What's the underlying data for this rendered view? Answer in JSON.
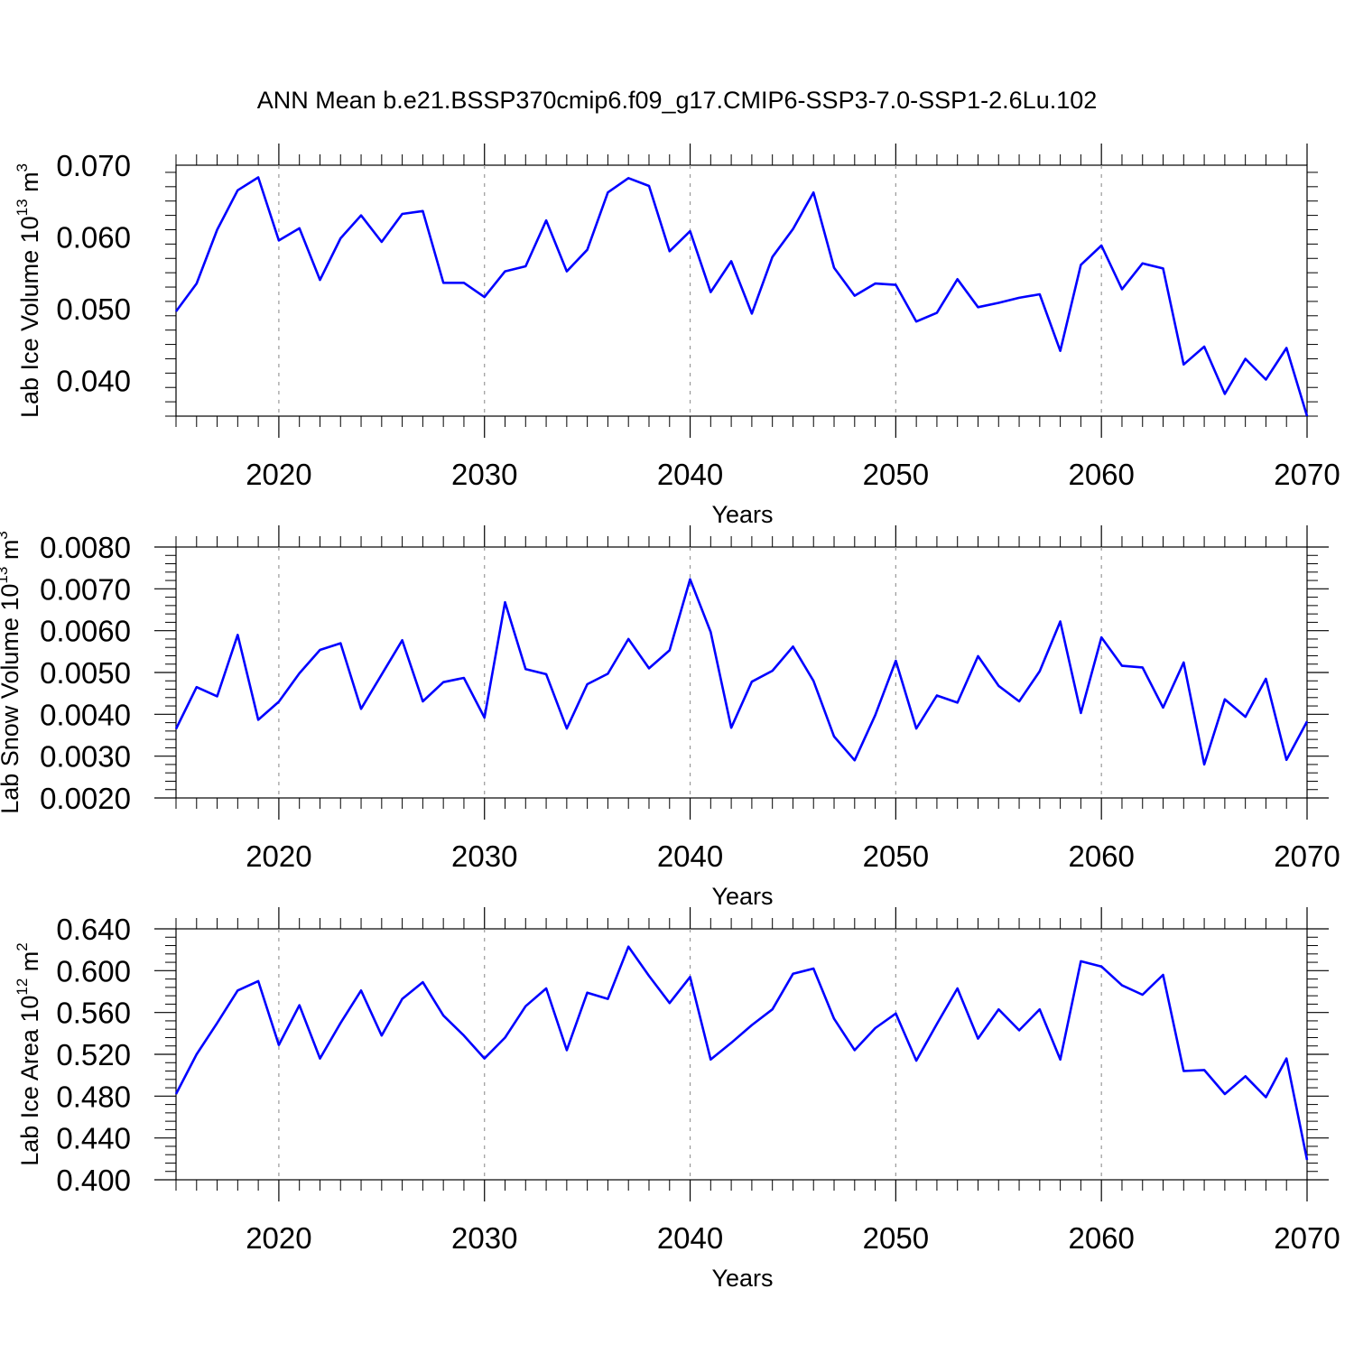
{
  "title": "ANN Mean b.e21.BSSP370cmip6.f09_g17.CMIP6-SSP3-7.0-SSP1-2.6Lu.102",
  "line_color": "#0000ff",
  "chart_data": [
    {
      "type": "line",
      "ylabel": {
        "text": "Lab Ice Volume 10",
        "exp": "13",
        "unit": " m",
        "unit_exp": "3"
      },
      "xlabel": "Years",
      "xlim": [
        2015,
        2070
      ],
      "ylim": [
        0.035,
        0.07
      ],
      "yticks": [
        0.04,
        0.05,
        0.06,
        0.07
      ],
      "ytick_labels": [
        "0.040",
        "0.050",
        "0.060",
        "0.070"
      ],
      "xticks": [
        2020,
        2030,
        2040,
        2050,
        2060,
        2070
      ],
      "xtick_labels": [
        "2020",
        "2030",
        "2040",
        "2050",
        "2060",
        "2070"
      ],
      "grid": "vertical dashed at major x ticks",
      "x": [
        2015,
        2016,
        2017,
        2018,
        2019,
        2020,
        2021,
        2022,
        2023,
        2024,
        2025,
        2026,
        2027,
        2028,
        2029,
        2030,
        2031,
        2032,
        2033,
        2034,
        2035,
        2036,
        2037,
        2038,
        2039,
        2040,
        2041,
        2042,
        2043,
        2044,
        2045,
        2046,
        2047,
        2048,
        2049,
        2050,
        2051,
        2052,
        2053,
        2054,
        2055,
        2056,
        2057,
        2058,
        2059,
        2060,
        2061,
        2062,
        2063,
        2064,
        2065,
        2066,
        2067,
        2068,
        2069,
        2070
      ],
      "values": [
        0.0496,
        0.0535,
        0.061,
        0.0665,
        0.0683,
        0.0595,
        0.0612,
        0.054,
        0.0598,
        0.063,
        0.0593,
        0.0632,
        0.0636,
        0.0536,
        0.0536,
        0.0516,
        0.0552,
        0.0559,
        0.0623,
        0.0552,
        0.0582,
        0.0662,
        0.0682,
        0.0671,
        0.058,
        0.0608,
        0.0523,
        0.0566,
        0.0493,
        0.0572,
        0.0611,
        0.0662,
        0.0557,
        0.0518,
        0.0535,
        0.0533,
        0.0482,
        0.0494,
        0.0541,
        0.0502,
        0.0508,
        0.0515,
        0.052,
        0.0441,
        0.0561,
        0.0588,
        0.0527,
        0.0563,
        0.0556,
        0.0422,
        0.0447,
        0.0381,
        0.043,
        0.0401,
        0.0445,
        0.035
      ]
    },
    {
      "type": "line",
      "ylabel": {
        "text": "Lab Snow Volume 10",
        "exp": "13",
        "unit": " m",
        "unit_exp": "3"
      },
      "xlabel": "Years",
      "xlim": [
        2015,
        2070
      ],
      "ylim": [
        0.002,
        0.008
      ],
      "yticks": [
        0.002,
        0.003,
        0.004,
        0.005,
        0.006,
        0.007,
        0.008
      ],
      "ytick_labels": [
        "0.0020",
        "0.0030",
        "0.0040",
        "0.0050",
        "0.0060",
        "0.0070",
        "0.0080"
      ],
      "xticks": [
        2020,
        2030,
        2040,
        2050,
        2060,
        2070
      ],
      "xtick_labels": [
        "2020",
        "2030",
        "2040",
        "2050",
        "2060",
        "2070"
      ],
      "grid": "vertical dashed at major x ticks",
      "x": [
        2015,
        2016,
        2017,
        2018,
        2019,
        2020,
        2021,
        2022,
        2023,
        2024,
        2025,
        2026,
        2027,
        2028,
        2029,
        2030,
        2031,
        2032,
        2033,
        2034,
        2035,
        2036,
        2037,
        2038,
        2039,
        2040,
        2041,
        2042,
        2043,
        2044,
        2045,
        2046,
        2047,
        2048,
        2049,
        2050,
        2051,
        2052,
        2053,
        2054,
        2055,
        2056,
        2057,
        2058,
        2059,
        2060,
        2061,
        2062,
        2063,
        2064,
        2065,
        2066,
        2067,
        2068,
        2069,
        2070
      ],
      "values": [
        0.00365,
        0.00465,
        0.00443,
        0.0059,
        0.00387,
        0.0043,
        0.00498,
        0.00554,
        0.0057,
        0.00413,
        0.00495,
        0.00577,
        0.00431,
        0.00477,
        0.00487,
        0.00392,
        0.00668,
        0.00508,
        0.00496,
        0.00366,
        0.00472,
        0.00497,
        0.0058,
        0.0051,
        0.00553,
        0.00723,
        0.00597,
        0.00368,
        0.00478,
        0.00504,
        0.00562,
        0.0048,
        0.00347,
        0.0029,
        0.00398,
        0.00528,
        0.00366,
        0.00445,
        0.00428,
        0.00539,
        0.00468,
        0.00431,
        0.00503,
        0.00622,
        0.00403,
        0.00584,
        0.00516,
        0.00512,
        0.00416,
        0.00524,
        0.0028,
        0.00436,
        0.00394,
        0.00485,
        0.00291,
        0.00383
      ]
    },
    {
      "type": "line",
      "ylabel": {
        "text": "Lab Ice Area 10",
        "exp": "12",
        "unit": " m",
        "unit_exp": "2"
      },
      "xlabel": "Years",
      "xlim": [
        2015,
        2070
      ],
      "ylim": [
        0.4,
        0.64
      ],
      "yticks": [
        0.4,
        0.44,
        0.48,
        0.52,
        0.56,
        0.6,
        0.64
      ],
      "ytick_labels": [
        "0.400",
        "0.440",
        "0.480",
        "0.520",
        "0.560",
        "0.600",
        "0.640"
      ],
      "xticks": [
        2020,
        2030,
        2040,
        2050,
        2060,
        2070
      ],
      "xtick_labels": [
        "2020",
        "2030",
        "2040",
        "2050",
        "2060",
        "2070"
      ],
      "grid": "vertical dashed at major x ticks",
      "x": [
        2015,
        2016,
        2017,
        2018,
        2019,
        2020,
        2021,
        2022,
        2023,
        2024,
        2025,
        2026,
        2027,
        2028,
        2029,
        2030,
        2031,
        2032,
        2033,
        2034,
        2035,
        2036,
        2037,
        2038,
        2039,
        2040,
        2041,
        2042,
        2043,
        2044,
        2045,
        2046,
        2047,
        2048,
        2049,
        2050,
        2051,
        2052,
        2053,
        2054,
        2055,
        2056,
        2057,
        2058,
        2059,
        2060,
        2061,
        2062,
        2063,
        2064,
        2065,
        2066,
        2067,
        2068,
        2069,
        2070
      ],
      "values": [
        0.482,
        0.52,
        0.55,
        0.581,
        0.59,
        0.529,
        0.567,
        0.516,
        0.55,
        0.581,
        0.538,
        0.573,
        0.589,
        0.557,
        0.538,
        0.516,
        0.536,
        0.566,
        0.583,
        0.524,
        0.579,
        0.573,
        0.623,
        0.595,
        0.569,
        0.594,
        0.515,
        0.531,
        0.548,
        0.563,
        0.597,
        0.602,
        0.554,
        0.524,
        0.545,
        0.559,
        0.514,
        0.549,
        0.583,
        0.535,
        0.563,
        0.543,
        0.563,
        0.515,
        0.609,
        0.604,
        0.586,
        0.577,
        0.596,
        0.504,
        0.505,
        0.482,
        0.499,
        0.479,
        0.516,
        0.419
      ]
    }
  ]
}
